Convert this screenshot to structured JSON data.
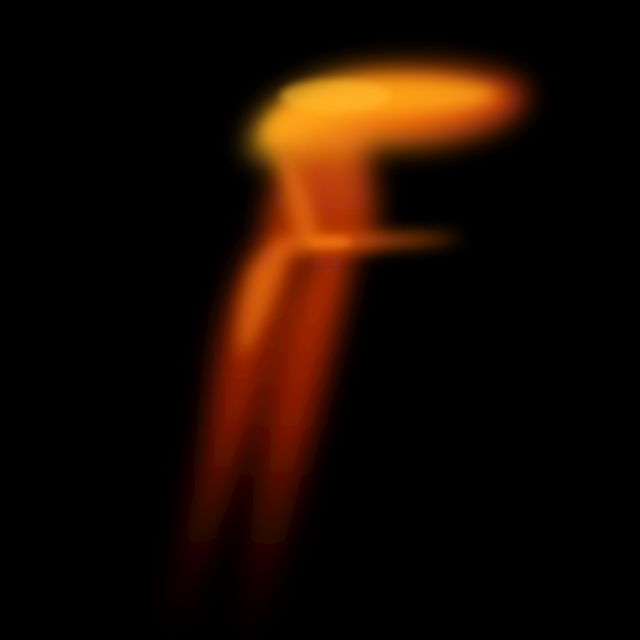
{
  "scene": {
    "subject": "flame",
    "background_color": "#000000",
    "palette": {
      "core": "#ffb020",
      "bright": "#ff8a10",
      "mid": "#e85a08",
      "deep": "#a81e02",
      "dark": "#5a0800"
    }
  }
}
